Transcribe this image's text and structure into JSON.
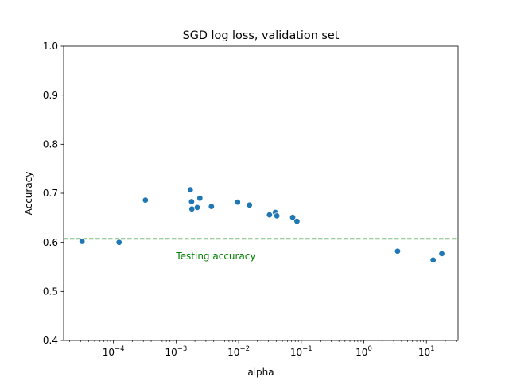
{
  "chart_data": {
    "type": "scatter",
    "title": "SGD log loss, validation set",
    "xlabel": "alpha",
    "ylabel": "Accuracy",
    "xscale": "log",
    "xlim": [
      1.6e-05,
      32
    ],
    "ylim": [
      0.4,
      1.0
    ],
    "grid": false,
    "marker_color": "#1f77b4",
    "reference_line_color": "#008000",
    "y_ticks": [
      {
        "value": 0.4,
        "label": "0.4"
      },
      {
        "value": 0.5,
        "label": "0.5"
      },
      {
        "value": 0.6,
        "label": "0.6"
      },
      {
        "value": 0.7,
        "label": "0.7"
      },
      {
        "value": 0.8,
        "label": "0.8"
      },
      {
        "value": 0.9,
        "label": "0.9"
      },
      {
        "value": 1.0,
        "label": "1.0"
      }
    ],
    "x_ticks": [
      {
        "exp": -4,
        "base": "10",
        "exponent": "−4"
      },
      {
        "exp": -3,
        "base": "10",
        "exponent": "−3"
      },
      {
        "exp": -2,
        "base": "10",
        "exponent": "−2"
      },
      {
        "exp": -1,
        "base": "10",
        "exponent": "−1"
      },
      {
        "exp": 0,
        "base": "10",
        "exponent": "0"
      },
      {
        "exp": 1,
        "base": "10",
        "exponent": "1"
      }
    ],
    "reference_line": {
      "y": 0.607,
      "label": "Testing accuracy",
      "label_x": 0.001,
      "label_y": 0.572
    },
    "points": [
      {
        "x": 3.15e-05,
        "y": 0.602
      },
      {
        "x": 0.000123,
        "y": 0.6
      },
      {
        "x": 0.000324,
        "y": 0.686
      },
      {
        "x": 0.00169,
        "y": 0.707
      },
      {
        "x": 0.00177,
        "y": 0.683
      },
      {
        "x": 0.00179,
        "y": 0.668
      },
      {
        "x": 0.00218,
        "y": 0.671
      },
      {
        "x": 0.0024,
        "y": 0.69
      },
      {
        "x": 0.00367,
        "y": 0.673
      },
      {
        "x": 0.00962,
        "y": 0.682
      },
      {
        "x": 0.0149,
        "y": 0.676
      },
      {
        "x": 0.0311,
        "y": 0.656
      },
      {
        "x": 0.0386,
        "y": 0.661
      },
      {
        "x": 0.0408,
        "y": 0.654
      },
      {
        "x": 0.073,
        "y": 0.651
      },
      {
        "x": 0.0855,
        "y": 0.643
      },
      {
        "x": 3.46,
        "y": 0.582
      },
      {
        "x": 12.8,
        "y": 0.564
      },
      {
        "x": 17.6,
        "y": 0.577
      }
    ]
  }
}
